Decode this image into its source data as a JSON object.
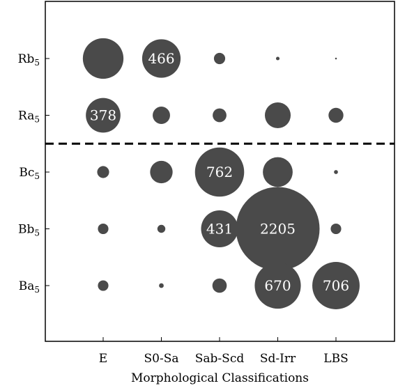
{
  "chart_data": {
    "type": "scatter",
    "subtype": "bubble",
    "title": "",
    "xlabel": "Morphological Classifications",
    "ylabel": "",
    "x_categories": [
      "E",
      "S0-Sa",
      "Sab-Scd",
      "Sd-Irr",
      "LBS"
    ],
    "y_categories": [
      {
        "base": "Ba",
        "sub": "5"
      },
      {
        "base": "Bb",
        "sub": "5"
      },
      {
        "base": "Bc",
        "sub": "5"
      },
      {
        "base": "Ra",
        "sub": "5"
      },
      {
        "base": "Rb",
        "sub": "5"
      }
    ],
    "bubble_color": "#4a4a4a",
    "label_color": "#ffffff",
    "separator": {
      "style": "dashed",
      "between": [
        "Bc5",
        "Ra5"
      ]
    },
    "grid": false,
    "points": [
      {
        "x": "E",
        "y": "Rb5",
        "value": 520
      },
      {
        "x": "S0-Sa",
        "y": "Rb5",
        "value": 466,
        "label": "466"
      },
      {
        "x": "Sab-Scd",
        "y": "Rb5",
        "value": 40
      },
      {
        "x": "Sd-Irr",
        "y": "Rb5",
        "value": 4
      },
      {
        "x": "LBS",
        "y": "Rb5",
        "value": 1
      },
      {
        "x": "E",
        "y": "Ra5",
        "value": 378,
        "label": "378"
      },
      {
        "x": "S0-Sa",
        "y": "Ra5",
        "value": 95
      },
      {
        "x": "Sab-Scd",
        "y": "Ra5",
        "value": 60
      },
      {
        "x": "Sd-Irr",
        "y": "Ra5",
        "value": 210
      },
      {
        "x": "LBS",
        "y": "Ra5",
        "value": 70
      },
      {
        "x": "E",
        "y": "Bc5",
        "value": 45
      },
      {
        "x": "S0-Sa",
        "y": "Bc5",
        "value": 160
      },
      {
        "x": "Sab-Scd",
        "y": "Bc5",
        "value": 762,
        "label": "762"
      },
      {
        "x": "Sd-Irr",
        "y": "Bc5",
        "value": 280
      },
      {
        "x": "LBS",
        "y": "Bc5",
        "value": 5
      },
      {
        "x": "E",
        "y": "Bb5",
        "value": 35
      },
      {
        "x": "S0-Sa",
        "y": "Bb5",
        "value": 20
      },
      {
        "x": "Sab-Scd",
        "y": "Bb5",
        "value": 431,
        "label": "431"
      },
      {
        "x": "Sd-Irr",
        "y": "Bb5",
        "value": 2205,
        "label": "2205"
      },
      {
        "x": "LBS",
        "y": "Bb5",
        "value": 35
      },
      {
        "x": "E",
        "y": "Ba5",
        "value": 35
      },
      {
        "x": "S0-Sa",
        "y": "Ba5",
        "value": 7
      },
      {
        "x": "Sab-Scd",
        "y": "Ba5",
        "value": 65
      },
      {
        "x": "Sd-Irr",
        "y": "Ba5",
        "value": 670,
        "label": "670"
      },
      {
        "x": "LBS",
        "y": "Ba5",
        "value": 706,
        "label": "706"
      }
    ]
  }
}
